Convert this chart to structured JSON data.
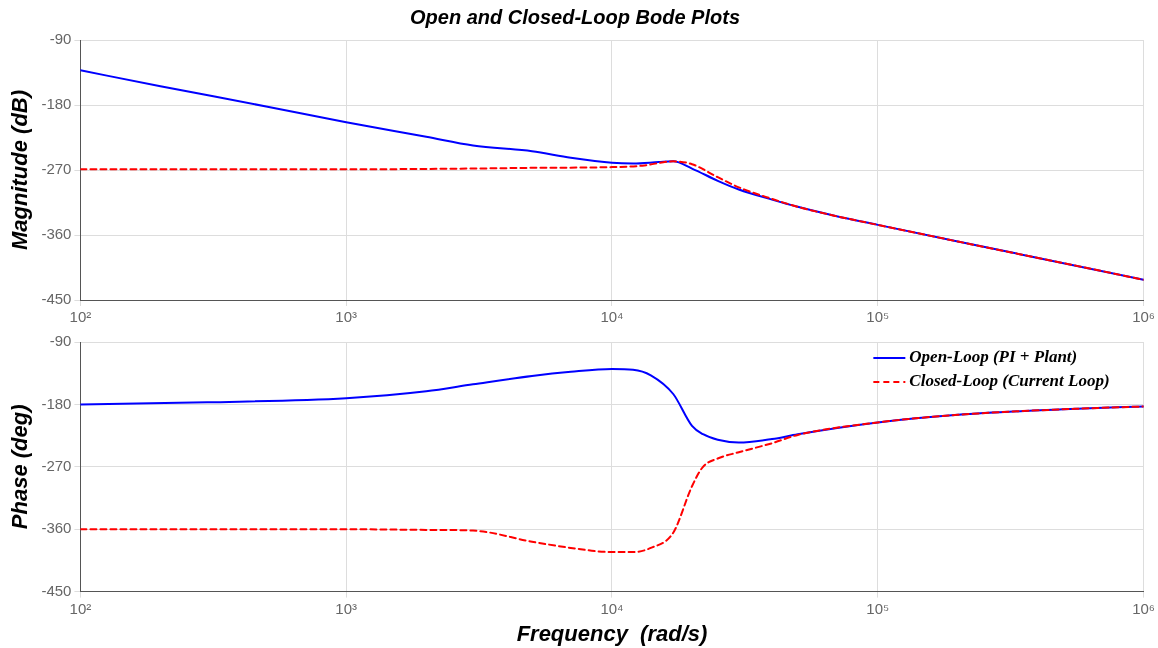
{
  "chart_data": [
    {
      "type": "line",
      "title": "Open and Closed-Loop Bode Plots",
      "ylabel": "Magnitude (dB)",
      "log": "x",
      "xlim": [
        100,
        1000000
      ],
      "xticks": [
        {
          "value": 100,
          "label": "10²"
        },
        {
          "value": 1000,
          "label": "10³"
        },
        {
          "value": 10000,
          "label": "10⁴"
        },
        {
          "value": 100000,
          "label": "10⁵"
        },
        {
          "value": 1000000,
          "label": "10⁶"
        }
      ],
      "ylim": [
        -450,
        -90
      ],
      "yticks": [
        -450,
        -360,
        -270,
        -180,
        -90
      ],
      "grid": true,
      "legend": false,
      "marker": "none",
      "series": [
        {
          "color": "#0000ff",
          "line_style": "solid",
          "x": [
            100,
            200,
            500,
            1000,
            2000,
            3000,
            5000,
            7000,
            10000,
            12000,
            15000,
            17000,
            20000,
            25000,
            30000,
            40000,
            50000,
            70000,
            100000,
            200000,
            500000,
            1000000
          ],
          "values": [
            -132,
            -154,
            -182,
            -204,
            -224,
            -236,
            -244,
            -253,
            -260,
            -261,
            -259,
            -258,
            -268,
            -285,
            -297,
            -311,
            -321,
            -334,
            -346,
            -369,
            -399,
            -422
          ]
        },
        {
          "color": "#ff0000",
          "line_style": "dashed",
          "x": [
            100,
            1000,
            3000,
            5000,
            10000,
            13000,
            17000,
            20000,
            25000,
            30000,
            40000,
            50000,
            70000,
            100000,
            200000,
            500000,
            1000000
          ],
          "values": [
            -269,
            -269,
            -268,
            -267,
            -266,
            -264,
            -258,
            -262,
            -280,
            -294,
            -310,
            -321,
            -334,
            -346,
            -369,
            -399,
            -422
          ]
        }
      ]
    },
    {
      "type": "line",
      "xlabel": "Frequency  (rad/s)",
      "ylabel": "Phase (deg)",
      "log": "x",
      "xlim": [
        100,
        1000000
      ],
      "xticks": [
        {
          "value": 100,
          "label": "10²"
        },
        {
          "value": 1000,
          "label": "10³"
        },
        {
          "value": 10000,
          "label": "10⁴"
        },
        {
          "value": 100000,
          "label": "10⁵"
        },
        {
          "value": 1000000,
          "label": "10⁶"
        }
      ],
      "ylim": [
        -450,
        -90
      ],
      "yticks": [
        -450,
        -360,
        -270,
        -180,
        -90
      ],
      "grid": true,
      "legend": "top right",
      "marker": "none",
      "series": [
        {
          "name": "Open-Loop (PI + Plant)",
          "color": "#0000ff",
          "line_style": "solid",
          "x": [
            100,
            300,
            1000,
            2000,
            3000,
            5000,
            7000,
            10000,
            12000,
            14000,
            17000,
            20000,
            22000,
            25000,
            30000,
            40000,
            50000,
            100000,
            200000,
            500000,
            1000000
          ],
          "values": [
            -180,
            -177,
            -171,
            -161,
            -151,
            -139,
            -133,
            -129,
            -130,
            -138,
            -165,
            -211,
            -223,
            -231,
            -235,
            -230,
            -223,
            -206,
            -195,
            -187,
            -183
          ]
        },
        {
          "name": "Closed-Loop (Current Loop)",
          "color": "#ff0000",
          "line_style": "dashed",
          "x": [
            100,
            1000,
            2000,
            3000,
            5000,
            7000,
            10000,
            12000,
            14000,
            17000,
            20000,
            22000,
            25000,
            30000,
            40000,
            50000,
            100000,
            200000,
            500000,
            1000000
          ],
          "values": [
            -360,
            -360,
            -361,
            -362,
            -378,
            -387,
            -393,
            -393,
            -387,
            -365,
            -298,
            -270,
            -258,
            -249,
            -236,
            -224,
            -206,
            -195,
            -187,
            -183
          ]
        }
      ]
    }
  ]
}
